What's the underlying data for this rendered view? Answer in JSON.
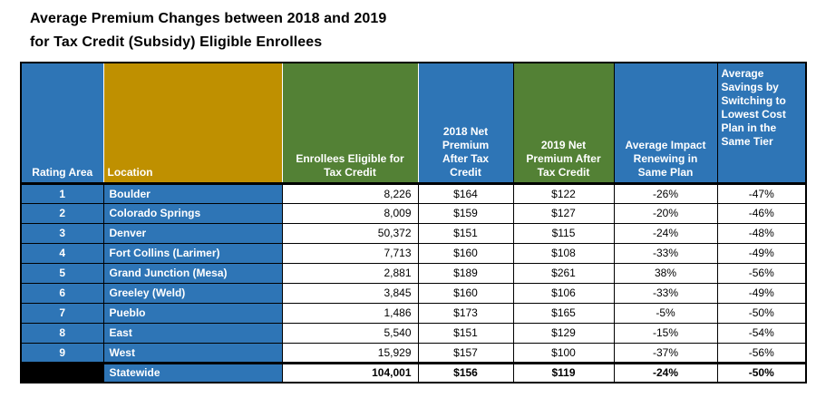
{
  "title": {
    "line1": "Average Premium Changes between 2018 and 2019",
    "line2": "for Tax Credit (Subsidy) Eligible Enrollees"
  },
  "colors": {
    "blue": "#2E75B6",
    "gold": "#BF9000",
    "green": "#538135",
    "black_cell": "#000000",
    "header_text": "#FFFFFF",
    "body_text": "#000000"
  },
  "chart_data": {
    "type": "table",
    "title": "Average Premium Changes between 2018 and 2019 for Tax Credit (Subsidy) Eligible Enrollees",
    "legend_position": "none",
    "columns": [
      {
        "key": "rating_area",
        "label": "Rating Area"
      },
      {
        "key": "location",
        "label": "Location"
      },
      {
        "key": "enrollees",
        "label": "Enrollees Eligible for\nTax Credit"
      },
      {
        "key": "premium_2018",
        "label": "2018 Net\nPremium\nAfter Tax\nCredit"
      },
      {
        "key": "premium_2019",
        "label": "2019 Net\nPremium After\nTax Credit"
      },
      {
        "key": "impact",
        "label": "Average Impact\nRenewing in\nSame Plan"
      },
      {
        "key": "savings",
        "label": "Average\nSavings by\nSwitching to\nLowest Cost\nPlan in the\nSame Tier"
      }
    ],
    "rows": [
      {
        "rating_area": "1",
        "location": "Boulder",
        "enrollees": "8,226",
        "premium_2018": "$164",
        "premium_2019": "$122",
        "impact": "-26%",
        "savings": "-47%",
        "total": false
      },
      {
        "rating_area": "2",
        "location": "Colorado Springs",
        "enrollees": "8,009",
        "premium_2018": "$159",
        "premium_2019": "$127",
        "impact": "-20%",
        "savings": "-46%",
        "total": false
      },
      {
        "rating_area": "3",
        "location": "Denver",
        "enrollees": "50,372",
        "premium_2018": "$151",
        "premium_2019": "$115",
        "impact": "-24%",
        "savings": "-48%",
        "total": false
      },
      {
        "rating_area": "4",
        "location": "Fort Collins (Larimer)",
        "enrollees": "7,713",
        "premium_2018": "$160",
        "premium_2019": "$108",
        "impact": "-33%",
        "savings": "-49%",
        "total": false
      },
      {
        "rating_area": "5",
        "location": "Grand Junction (Mesa)",
        "enrollees": "2,881",
        "premium_2018": "$189",
        "premium_2019": "$261",
        "impact": "38%",
        "savings": "-56%",
        "total": false
      },
      {
        "rating_area": "6",
        "location": "Greeley (Weld)",
        "enrollees": "3,845",
        "premium_2018": "$160",
        "premium_2019": "$106",
        "impact": "-33%",
        "savings": "-49%",
        "total": false
      },
      {
        "rating_area": "7",
        "location": "Pueblo",
        "enrollees": "1,486",
        "premium_2018": "$173",
        "premium_2019": "$165",
        "impact": "-5%",
        "savings": "-50%",
        "total": false
      },
      {
        "rating_area": "8",
        "location": "East",
        "enrollees": "5,540",
        "premium_2018": "$151",
        "premium_2019": "$129",
        "impact": "-15%",
        "savings": "-54%",
        "total": false
      },
      {
        "rating_area": "9",
        "location": "West",
        "enrollees": "15,929",
        "premium_2018": "$157",
        "premium_2019": "$100",
        "impact": "-37%",
        "savings": "-56%",
        "total": false
      },
      {
        "rating_area": "",
        "location": "Statewide",
        "enrollees": "104,001",
        "premium_2018": "$156",
        "premium_2019": "$119",
        "impact": "-24%",
        "savings": "-50%",
        "total": true
      }
    ]
  }
}
